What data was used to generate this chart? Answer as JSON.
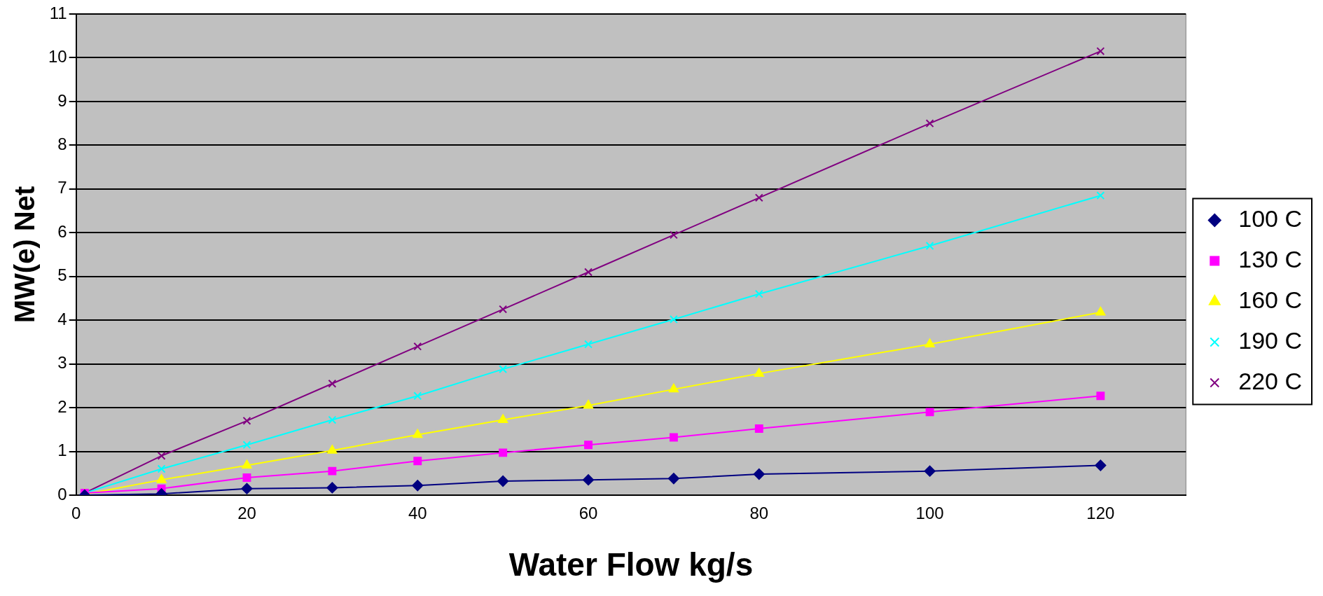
{
  "chart_data": {
    "type": "line",
    "xlabel": "Water Flow kg/s",
    "ylabel": "MW(e) Net",
    "x": [
      1,
      10,
      20,
      30,
      40,
      50,
      60,
      70,
      80,
      100,
      120
    ],
    "series": [
      {
        "name": "100 C",
        "color": "#000080",
        "marker": "diamond",
        "values": [
          0,
          0.03,
          0.15,
          0.17,
          0.22,
          0.32,
          0.35,
          0.38,
          0.48,
          0.55,
          0.68
        ]
      },
      {
        "name": "130 C",
        "color": "#ff00ff",
        "marker": "square",
        "values": [
          0.05,
          0.15,
          0.4,
          0.55,
          0.78,
          0.97,
          1.15,
          1.32,
          1.52,
          1.9,
          2.27
        ]
      },
      {
        "name": "160 C",
        "color": "#ffff00",
        "marker": "triangle",
        "values": [
          0.02,
          0.35,
          0.68,
          1.02,
          1.38,
          1.72,
          2.05,
          2.42,
          2.78,
          3.45,
          4.18
        ]
      },
      {
        "name": "190 C",
        "color": "#00ffff",
        "marker": "cross",
        "values": [
          0.05,
          0.6,
          1.15,
          1.72,
          2.27,
          2.88,
          3.45,
          4.02,
          4.6,
          5.7,
          6.85
        ]
      },
      {
        "name": "220 C",
        "color": "#800080",
        "marker": "cross",
        "values": [
          0.05,
          0.9,
          1.7,
          2.55,
          3.4,
          4.25,
          5.1,
          5.95,
          6.8,
          8.5,
          10.15
        ]
      }
    ],
    "xlim": [
      0,
      130
    ],
    "xticks": [
      0,
      20,
      40,
      60,
      80,
      100,
      120
    ],
    "ylim": [
      0,
      11
    ],
    "yticks": [
      0,
      1,
      2,
      3,
      4,
      5,
      6,
      7,
      8,
      9,
      10,
      11
    ],
    "grid": "y",
    "legend": "right",
    "line_style": "solid"
  }
}
